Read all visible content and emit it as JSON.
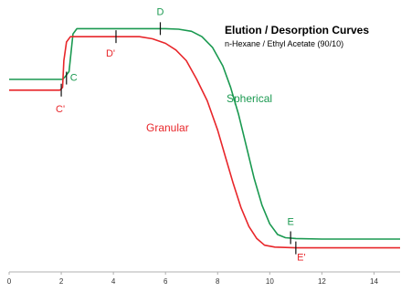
{
  "chart_data": {
    "type": "line",
    "title": "Elution / Desorption Curves",
    "subtitle": "n-Hexane / Ethyl Acetate (90/10)",
    "xlabel": "",
    "ylabel": "",
    "xlim": [
      0,
      15
    ],
    "ylim": [
      0,
      100
    ],
    "x_ticks": [
      0,
      2,
      4,
      6,
      8,
      10,
      12,
      14
    ],
    "grid": false,
    "series": [
      {
        "name": "Spherical",
        "color": "#1a9950",
        "points": [
          [
            0,
            72
          ],
          [
            2.05,
            72
          ],
          [
            2.15,
            73
          ],
          [
            2.3,
            75
          ],
          [
            2.45,
            89
          ],
          [
            2.6,
            91
          ],
          [
            3,
            91
          ],
          [
            4,
            91
          ],
          [
            5,
            91
          ],
          [
            6,
            91
          ],
          [
            6.5,
            90.8
          ],
          [
            7,
            90
          ],
          [
            7.4,
            88
          ],
          [
            7.8,
            84
          ],
          [
            8.2,
            77
          ],
          [
            8.5,
            69
          ],
          [
            8.8,
            59
          ],
          [
            9.1,
            47
          ],
          [
            9.4,
            35
          ],
          [
            9.7,
            25
          ],
          [
            10,
            18
          ],
          [
            10.3,
            14
          ],
          [
            10.6,
            12.8
          ],
          [
            11,
            12.5
          ],
          [
            12,
            12.3
          ],
          [
            13,
            12.3
          ],
          [
            15,
            12.3
          ]
        ]
      },
      {
        "name": "Granular",
        "color": "#e8262a",
        "points": [
          [
            0,
            68
          ],
          [
            1.95,
            68
          ],
          [
            2.05,
            69
          ],
          [
            2.1,
            79
          ],
          [
            2.2,
            86
          ],
          [
            2.35,
            88
          ],
          [
            3,
            88
          ],
          [
            4,
            88
          ],
          [
            5,
            88
          ],
          [
            5.5,
            87.2
          ],
          [
            6,
            85.5
          ],
          [
            6.4,
            83
          ],
          [
            6.8,
            79
          ],
          [
            7.2,
            72
          ],
          [
            7.6,
            64
          ],
          [
            8,
            53
          ],
          [
            8.3,
            43
          ],
          [
            8.6,
            33
          ],
          [
            8.9,
            24
          ],
          [
            9.2,
            17
          ],
          [
            9.5,
            12.5
          ],
          [
            9.8,
            10
          ],
          [
            10.2,
            9.3
          ],
          [
            11,
            9
          ],
          [
            12,
            9
          ],
          [
            13,
            9
          ],
          [
            15,
            9
          ]
        ]
      }
    ],
    "annotations": [
      {
        "label": "C",
        "series": "Spherical",
        "x": 2.2,
        "y": 72.5
      },
      {
        "label": "D",
        "series": "Spherical",
        "x": 5.8,
        "y": 91
      },
      {
        "label": "E",
        "series": "Spherical",
        "x": 10.8,
        "y": 12.8
      },
      {
        "label": "C'",
        "series": "Granular",
        "x": 2.0,
        "y": 68
      },
      {
        "label": "D'",
        "series": "Granular",
        "x": 4.1,
        "y": 88
      },
      {
        "label": "E'",
        "series": "Granular",
        "x": 11.0,
        "y": 9
      }
    ]
  }
}
